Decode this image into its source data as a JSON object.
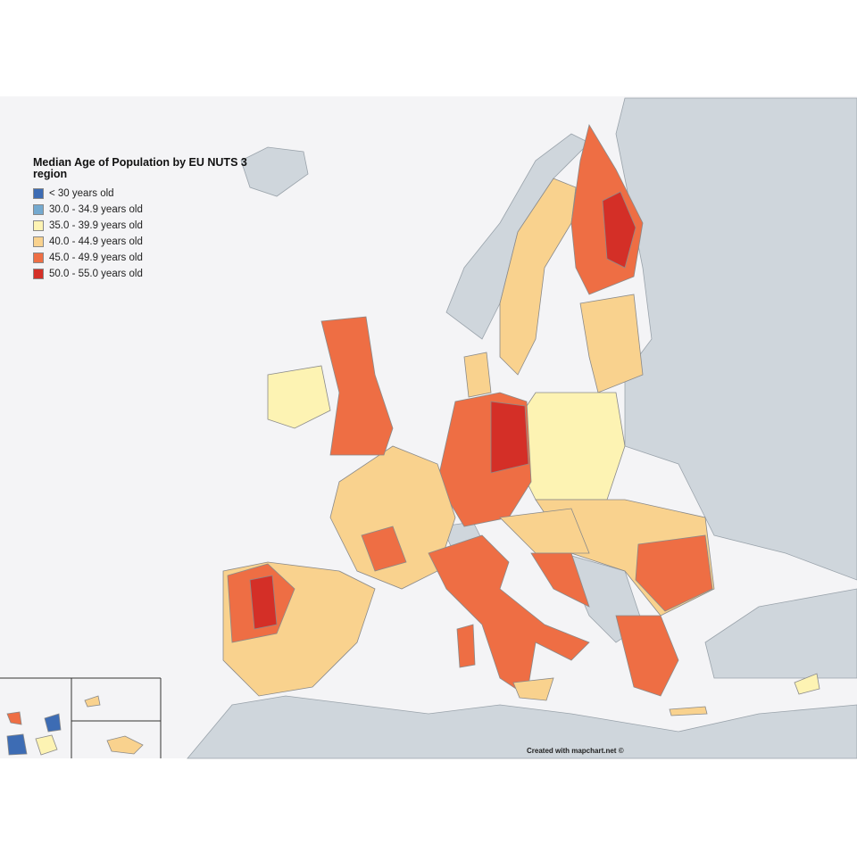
{
  "title": "Median Age of Population by EU NUTS 3 region",
  "legend": [
    {
      "label": "< 30 years old",
      "color": "#3d6cb4"
    },
    {
      "label": "30.0 - 34.9 years old",
      "color": "#74a9cf"
    },
    {
      "label": "35.0 - 39.9 years old",
      "color": "#fdf3b3"
    },
    {
      "label": "40.0 - 44.9 years old",
      "color": "#f9d28e"
    },
    {
      "label": "45.0 - 49.9 years old",
      "color": "#ee6e44"
    },
    {
      "label": "50.0 - 55.0 years old",
      "color": "#d42f27"
    }
  ],
  "credit": "Created with mapchart.net ©"
}
